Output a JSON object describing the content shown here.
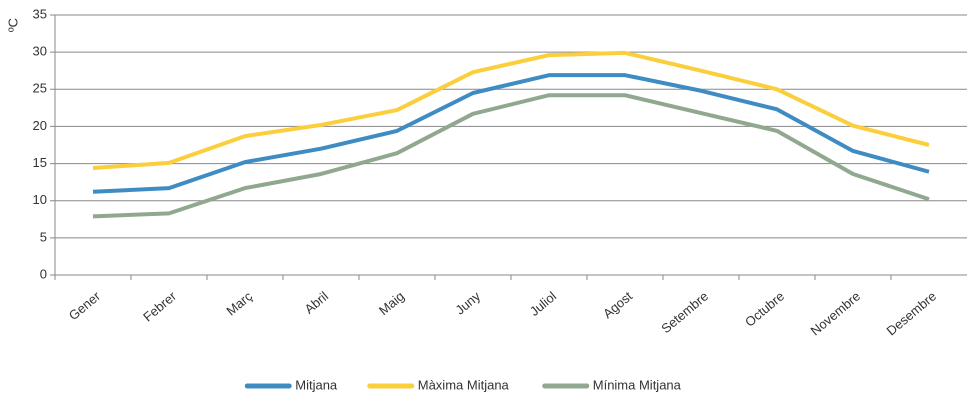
{
  "chart_data": {
    "type": "line",
    "ylabel": "ºC",
    "categories": [
      "Gener",
      "Febrer",
      "Març",
      "Abril",
      "Maig",
      "Juny",
      "Juliol",
      "Agost",
      "Setembre",
      "Octubre",
      "Novembre",
      "Desembre"
    ],
    "series": [
      {
        "name": "Mitjana",
        "color": "#3f8bc3",
        "values": [
          11.2,
          11.7,
          15.2,
          17.0,
          19.4,
          24.5,
          26.9,
          26.9,
          24.8,
          22.3,
          16.7,
          13.9
        ]
      },
      {
        "name": "Màxima Mitjana",
        "color": "#fbce3b",
        "values": [
          14.4,
          15.1,
          18.7,
          20.2,
          22.2,
          27.3,
          29.6,
          29.9,
          27.5,
          25.0,
          20.1,
          17.5
        ]
      },
      {
        "name": "Mínima Mitjana",
        "color": "#8fa88f",
        "values": [
          7.9,
          8.3,
          11.7,
          13.6,
          16.4,
          21.7,
          24.2,
          24.2,
          21.8,
          19.4,
          13.6,
          10.2
        ]
      }
    ],
    "ylim": [
      0,
      35
    ],
    "yticks": [
      0,
      5,
      10,
      15,
      20,
      25,
      30,
      35
    ],
    "grid": true,
    "legend": "bottom"
  }
}
